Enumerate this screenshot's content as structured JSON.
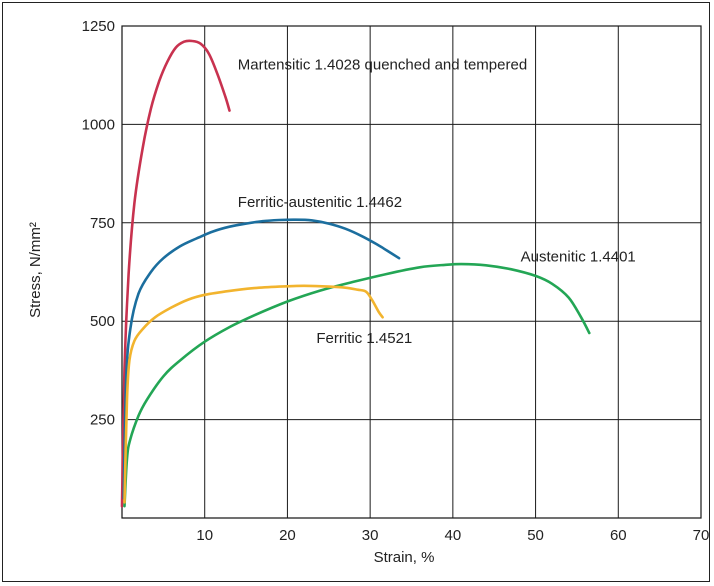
{
  "chart_data": {
    "type": "line",
    "title": "",
    "xlabel": "Strain, %",
    "ylabel": "Stress, N/mm²",
    "xlim": [
      0,
      70
    ],
    "ylim": [
      0,
      1250
    ],
    "xticks": [
      10,
      20,
      30,
      40,
      50,
      60,
      70
    ],
    "yticks": [
      250,
      500,
      750,
      1000,
      1250
    ],
    "grid": true,
    "legend": "none",
    "series": [
      {
        "name": "Martensitic 1.4028 quenched and tempered",
        "color": "#c8324f",
        "x": [
          0.0,
          0.3,
          0.8,
          1.5,
          2.5,
          3.5,
          4.5,
          5.5,
          6.5,
          7.5,
          8.5,
          9.5,
          10.5,
          11.5,
          12.5,
          13.0
        ],
        "y": [
          30,
          380,
          620,
          800,
          940,
          1040,
          1110,
          1160,
          1195,
          1210,
          1212,
          1205,
          1180,
          1130,
          1070,
          1035
        ]
      },
      {
        "name": "Ferritic-austenitic 1.4462",
        "color": "#1b6e9e",
        "x": [
          0.2,
          0.5,
          1.0,
          2.0,
          3.5,
          5.0,
          7.0,
          9.0,
          11.0,
          13.0,
          15.0,
          17.0,
          19.0,
          21.0,
          23.0,
          25.0,
          27.0,
          29.0,
          31.0,
          32.0,
          33.5
        ],
        "y": [
          50,
          350,
          480,
          570,
          625,
          660,
          690,
          710,
          728,
          740,
          748,
          754,
          757,
          758,
          756,
          748,
          735,
          716,
          693,
          680,
          660
        ]
      },
      {
        "name": "Austenitic 1.4401",
        "color": "#23a655",
        "x": [
          0.3,
          0.6,
          1.0,
          2.0,
          3.0,
          5.0,
          7.0,
          10.0,
          13.0,
          16.0,
          20.0,
          24.0,
          28.0,
          32.0,
          36.0,
          39.0,
          41.0,
          44.0,
          47.0,
          50.0,
          52.0,
          54.0,
          55.5,
          56.5
        ],
        "y": [
          30,
          150,
          200,
          260,
          300,
          360,
          400,
          448,
          485,
          515,
          550,
          578,
          600,
          620,
          637,
          643,
          645,
          642,
          632,
          615,
          595,
          560,
          510,
          470
        ]
      },
      {
        "name": "Ferritic 1.4521",
        "color": "#f2b42e",
        "x": [
          0.3,
          0.6,
          0.9,
          1.5,
          2.5,
          4.0,
          6.0,
          8.0,
          10.0,
          13.0,
          16.0,
          19.0,
          22.0,
          25.0,
          27.0,
          28.5,
          29.5,
          30.2,
          31.0,
          31.5
        ],
        "y": [
          40,
          300,
          400,
          450,
          480,
          510,
          535,
          555,
          567,
          577,
          584,
          588,
          590,
          588,
          585,
          580,
          575,
          555,
          525,
          510
        ]
      }
    ],
    "annotations": [
      {
        "text": "Martensitic 1.4028 quenched and tempered",
        "x": 14,
        "y": 1140
      },
      {
        "text": "Ferritic-austenitic 1.4462",
        "x": 14,
        "y": 790
      },
      {
        "text": "Austenitic  1.4401",
        "x": 48.2,
        "y": 652
      },
      {
        "text": "Ferritic  1.4521",
        "x": 23.5,
        "y": 445
      }
    ]
  }
}
